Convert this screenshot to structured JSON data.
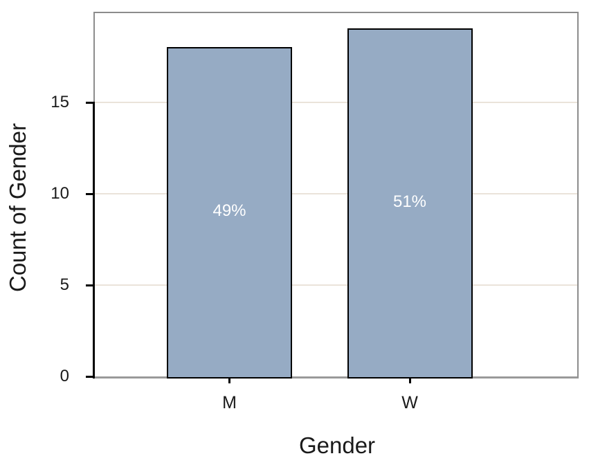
{
  "chart_data": {
    "type": "bar",
    "title": "",
    "xlabel": "Gender",
    "ylabel": "Count of Gender",
    "categories": [
      "M",
      "W"
    ],
    "values": [
      18,
      19
    ],
    "bar_labels": [
      "49%",
      "51%"
    ],
    "yticks": [
      0,
      5,
      10,
      15
    ],
    "ylim": [
      0,
      19.9
    ],
    "grid": "horizontal",
    "legend_position": "none",
    "colors": {
      "bar_fill": "#96ABC4",
      "bar_border": "#000000",
      "gridline": "#EAE3DA",
      "panel_border": "#8C8C8C",
      "baseline": "#999999",
      "axis": "#000000",
      "bar_label_text": "#FFFFFF",
      "text": "#1A1A1A",
      "background": "#FFFFFF"
    }
  }
}
